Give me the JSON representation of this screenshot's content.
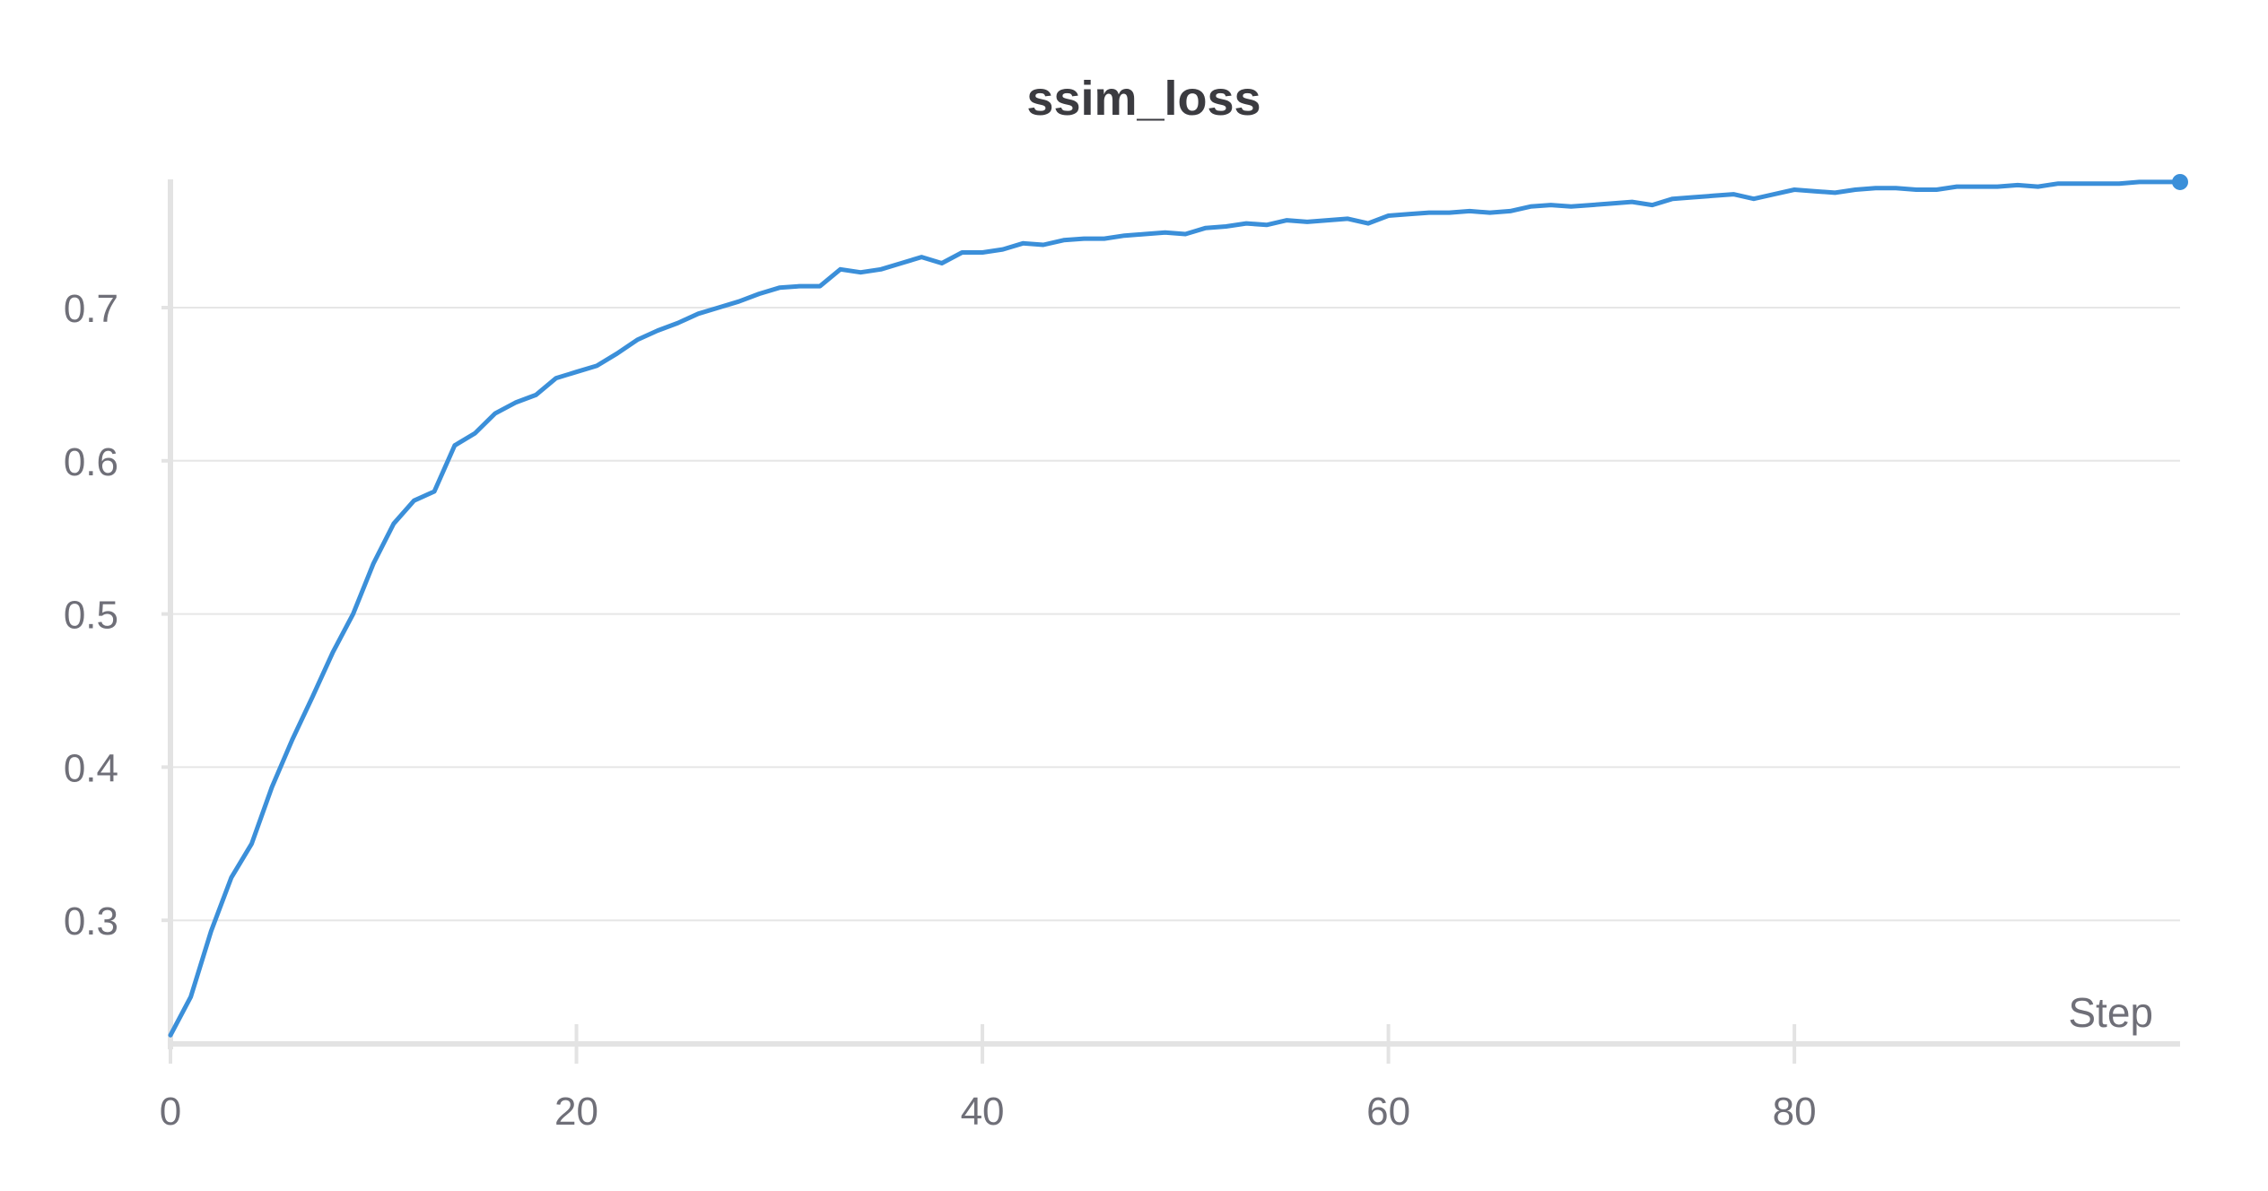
{
  "chart_data": {
    "type": "line",
    "title": "ssim_loss",
    "xlabel": "Step",
    "ylabel": "",
    "xlim": [
      0,
      99
    ],
    "ylim": [
      0.22,
      0.82
    ],
    "xticks": [
      0,
      20,
      40,
      60,
      80
    ],
    "yticks": [
      0.3,
      0.4,
      0.5,
      0.6,
      0.7
    ],
    "grid": true,
    "series": [
      {
        "color": "#3b8fd9",
        "x": [
          0,
          1,
          2,
          3,
          4,
          5,
          6,
          7,
          8,
          9,
          10,
          11,
          12,
          13,
          14,
          15,
          16,
          17,
          18,
          19,
          20,
          21,
          22,
          23,
          24,
          25,
          26,
          27,
          28,
          29,
          30,
          31,
          32,
          33,
          34,
          35,
          36,
          37,
          38,
          39,
          40,
          41,
          42,
          43,
          44,
          45,
          46,
          47,
          48,
          49,
          50,
          51,
          52,
          53,
          54,
          55,
          56,
          57,
          58,
          59,
          60,
          61,
          62,
          63,
          64,
          65,
          66,
          67,
          68,
          69,
          70,
          71,
          72,
          73,
          74,
          75,
          76,
          77,
          78,
          79,
          80,
          81,
          82,
          83,
          84,
          85,
          86,
          87,
          88,
          89,
          90,
          91,
          92,
          93,
          94,
          95,
          96,
          97,
          98,
          99
        ],
        "values": [
          0.225,
          0.25,
          0.293,
          0.328,
          0.35,
          0.387,
          0.418,
          0.446,
          0.475,
          0.5,
          0.533,
          0.559,
          0.574,
          0.58,
          0.61,
          0.618,
          0.631,
          0.638,
          0.643,
          0.654,
          0.658,
          0.662,
          0.67,
          0.679,
          0.685,
          0.69,
          0.696,
          0.7,
          0.704,
          0.709,
          0.713,
          0.714,
          0.714,
          0.725,
          0.723,
          0.725,
          0.729,
          0.733,
          0.729,
          0.736,
          0.736,
          0.738,
          0.742,
          0.741,
          0.744,
          0.745,
          0.745,
          0.747,
          0.748,
          0.749,
          0.748,
          0.752,
          0.753,
          0.755,
          0.754,
          0.757,
          0.756,
          0.757,
          0.758,
          0.755,
          0.76,
          0.761,
          0.762,
          0.762,
          0.763,
          0.762,
          0.763,
          0.766,
          0.767,
          0.766,
          0.767,
          0.768,
          0.769,
          0.767,
          0.771,
          0.772,
          0.773,
          0.774,
          0.771,
          0.774,
          0.777,
          0.776,
          0.775,
          0.777,
          0.778,
          0.778,
          0.777,
          0.777,
          0.779,
          0.779,
          0.779,
          0.78,
          0.779,
          0.781,
          0.781,
          0.781,
          0.781,
          0.782,
          0.782,
          0.782
        ]
      }
    ]
  }
}
